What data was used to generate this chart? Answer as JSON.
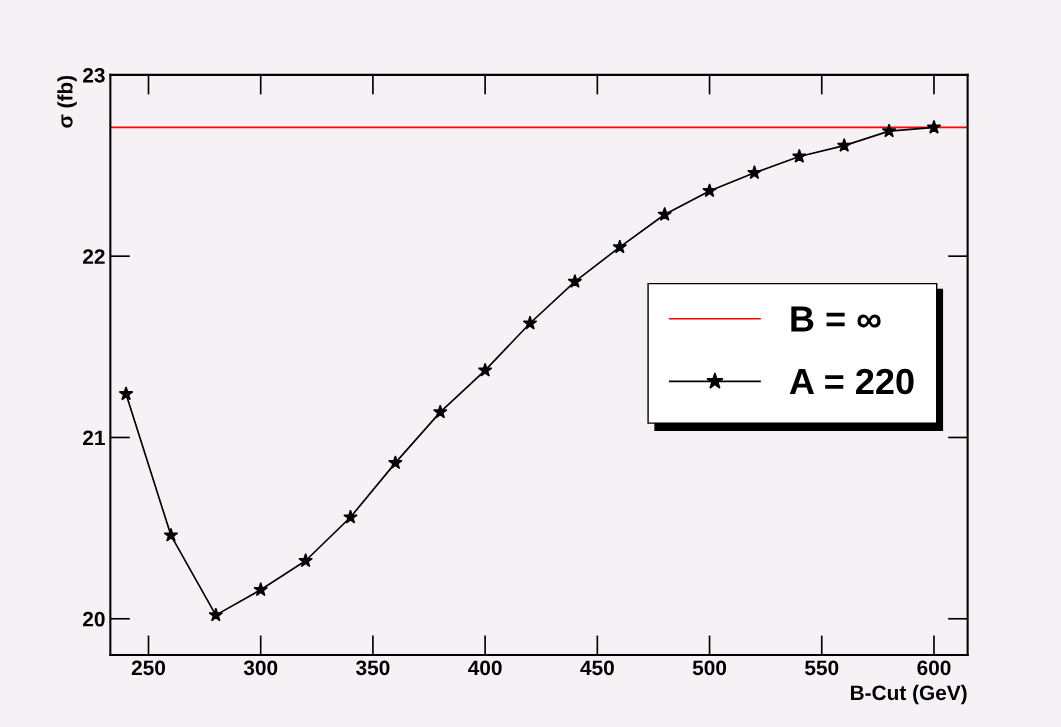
{
  "chart_data": {
    "type": "line",
    "xlabel": "B-Cut (GeV)",
    "ylabel": "σ (fb)",
    "x": [
      240,
      260,
      280,
      300,
      320,
      340,
      360,
      380,
      400,
      420,
      440,
      460,
      480,
      500,
      520,
      540,
      560,
      580,
      600
    ],
    "series": [
      {
        "name": "A = 220",
        "color": "#000000",
        "values": [
          21.24,
          20.46,
          20.02,
          20.16,
          20.32,
          20.56,
          20.86,
          21.14,
          21.37,
          21.63,
          21.86,
          22.05,
          22.23,
          22.36,
          22.46,
          22.55,
          22.61,
          22.69,
          22.71
        ]
      }
    ],
    "ref_lines": [
      {
        "axis": "y",
        "value": 22.71,
        "label": "B = ∞",
        "color": "#ff0000"
      }
    ],
    "xlim": [
      233,
      615
    ],
    "ylim": [
      19.8,
      23
    ],
    "xticks": [
      250,
      300,
      350,
      400,
      450,
      500,
      550,
      600
    ],
    "yticks": [
      20,
      21,
      22,
      23
    ],
    "marker": "star",
    "legend": "right",
    "grid": false
  }
}
